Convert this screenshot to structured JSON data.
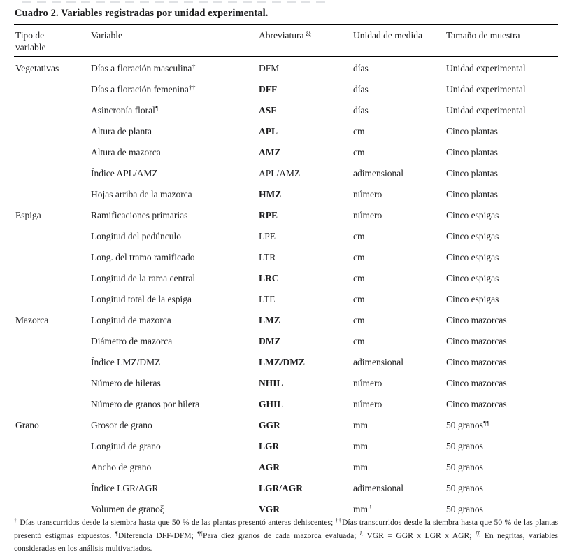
{
  "title": "Cuadro 2. Variables registradas por unidad experimental.",
  "colors": {
    "text": "#1d1d1f",
    "rule": "#000000",
    "background": "#ffffff"
  },
  "table": {
    "headers": [
      {
        "label": "Tipo de variable",
        "sup": ""
      },
      {
        "label": "Variable",
        "sup": ""
      },
      {
        "label": "Abreviatura",
        "sup": "ξξ"
      },
      {
        "label": "Unidad de medida",
        "sup": ""
      },
      {
        "label": "Tamaño de muestra",
        "sup": ""
      }
    ],
    "rows": [
      {
        "group": "Vegetativas",
        "variable": "Días a floración masculina",
        "variable_sup": "†",
        "abbr": "DFM",
        "abbr_bold": false,
        "unit": "días",
        "unit_sup": "",
        "sample": "Unidad experimental",
        "sample_sup": ""
      },
      {
        "group": "",
        "variable": "Días a floración femenina",
        "variable_sup": "††",
        "abbr": "DFF",
        "abbr_bold": true,
        "unit": "días",
        "unit_sup": "",
        "sample": "Unidad experimental",
        "sample_sup": ""
      },
      {
        "group": "",
        "variable": "Asincronía floral",
        "variable_sup": "¶",
        "abbr": "ASF",
        "abbr_bold": true,
        "unit": "días",
        "unit_sup": "",
        "sample": "Unidad experimental",
        "sample_sup": ""
      },
      {
        "group": "",
        "variable": "Altura de planta",
        "variable_sup": "",
        "abbr": "APL",
        "abbr_bold": true,
        "unit": "cm",
        "unit_sup": "",
        "sample": "Cinco plantas",
        "sample_sup": ""
      },
      {
        "group": "",
        "variable": "Altura de mazorca",
        "variable_sup": "",
        "abbr": "AMZ",
        "abbr_bold": true,
        "unit": "cm",
        "unit_sup": "",
        "sample": "Cinco plantas",
        "sample_sup": ""
      },
      {
        "group": "",
        "variable": "Índice APL/AMZ",
        "variable_sup": "",
        "abbr": "APL/AMZ",
        "abbr_bold": false,
        "unit": "adimensional",
        "unit_sup": "",
        "sample": "Cinco plantas",
        "sample_sup": ""
      },
      {
        "group": "",
        "variable": "Hojas arriba de la mazorca",
        "variable_sup": "",
        "abbr": "HMZ",
        "abbr_bold": true,
        "unit": "número",
        "unit_sup": "",
        "sample": "Cinco plantas",
        "sample_sup": ""
      },
      {
        "group": "Espiga",
        "variable": "Ramificaciones primarias",
        "variable_sup": "",
        "abbr": "RPE",
        "abbr_bold": true,
        "unit": "número",
        "unit_sup": "",
        "sample": "Cinco espigas",
        "sample_sup": ""
      },
      {
        "group": "",
        "variable": "Longitud del pedúnculo",
        "variable_sup": "",
        "abbr": "LPE",
        "abbr_bold": false,
        "unit": "cm",
        "unit_sup": "",
        "sample": "Cinco espigas",
        "sample_sup": ""
      },
      {
        "group": "",
        "variable": "Long. del tramo ramificado",
        "variable_sup": "",
        "abbr": "LTR",
        "abbr_bold": false,
        "unit": "cm",
        "unit_sup": "",
        "sample": "Cinco espigas",
        "sample_sup": ""
      },
      {
        "group": "",
        "variable": "Longitud de la rama central",
        "variable_sup": "",
        "abbr": "LRC",
        "abbr_bold": true,
        "unit": "cm",
        "unit_sup": "",
        "sample": "Cinco espigas",
        "sample_sup": ""
      },
      {
        "group": "",
        "variable": "Longitud total de la espiga",
        "variable_sup": "",
        "abbr": "LTE",
        "abbr_bold": false,
        "unit": "cm",
        "unit_sup": "",
        "sample": "Cinco espigas",
        "sample_sup": ""
      },
      {
        "group": "Mazorca",
        "variable": "Longitud de mazorca",
        "variable_sup": "",
        "abbr": "LMZ",
        "abbr_bold": true,
        "unit": "cm",
        "unit_sup": "",
        "sample": "Cinco mazorcas",
        "sample_sup": ""
      },
      {
        "group": "",
        "variable": "Diámetro de mazorca",
        "variable_sup": "",
        "abbr": "DMZ",
        "abbr_bold": true,
        "unit": "cm",
        "unit_sup": "",
        "sample": "Cinco mazorcas",
        "sample_sup": ""
      },
      {
        "group": "",
        "variable": "Índice LMZ/DMZ",
        "variable_sup": "",
        "abbr": "LMZ/DMZ",
        "abbr_bold": true,
        "unit": "adimensional",
        "unit_sup": "",
        "sample": "Cinco mazorcas",
        "sample_sup": ""
      },
      {
        "group": "",
        "variable": "Número de hileras",
        "variable_sup": "",
        "abbr": "NHIL",
        "abbr_bold": true,
        "unit": "número",
        "unit_sup": "",
        "sample": "Cinco mazorcas",
        "sample_sup": ""
      },
      {
        "group": "",
        "variable": "Número de granos por hilera",
        "variable_sup": "",
        "abbr": "GHIL",
        "abbr_bold": true,
        "unit": "número",
        "unit_sup": "",
        "sample": "Cinco mazorcas",
        "sample_sup": ""
      },
      {
        "group": "Grano",
        "variable": "Grosor de grano",
        "variable_sup": "",
        "abbr": "GGR",
        "abbr_bold": true,
        "unit": "mm",
        "unit_sup": "",
        "sample": "50 granos",
        "sample_sup": "¶¶"
      },
      {
        "group": "",
        "variable": "Longitud de grano",
        "variable_sup": "",
        "abbr": "LGR",
        "abbr_bold": true,
        "unit": "mm",
        "unit_sup": "",
        "sample": "50 granos",
        "sample_sup": ""
      },
      {
        "group": "",
        "variable": "Ancho de grano",
        "variable_sup": "",
        "abbr": "AGR",
        "abbr_bold": true,
        "unit": "mm",
        "unit_sup": "",
        "sample": "50 granos",
        "sample_sup": ""
      },
      {
        "group": "",
        "variable": "Índice LGR/AGR",
        "variable_sup": "",
        "abbr": "LGR/AGR",
        "abbr_bold": true,
        "unit": "adimensional",
        "unit_sup": "",
        "sample": "50 granos",
        "sample_sup": ""
      },
      {
        "group": "",
        "variable": "Volumen de granoξ",
        "variable_sup": "",
        "abbr": "VGR",
        "abbr_bold": true,
        "unit": "mm",
        "unit_sup": "3",
        "sample": "50 granos",
        "sample_sup": ""
      }
    ]
  },
  "footnote": {
    "segments": [
      {
        "sup": "†",
        "text": " Días transcurridos desde la siembra hasta que 50 % de las plantas presentó anteras dehiscentes; "
      },
      {
        "sup": "††",
        "text": "Días transcurridos desde la siembra hasta que 50 % de las plantas presentó estigmas expuestos. "
      },
      {
        "sup": "¶",
        "text": "Diferencia DFF-DFM; "
      },
      {
        "sup": "¶¶",
        "text": "Para diez granos de cada mazorca evaluada; "
      },
      {
        "sup": "ξ",
        "text": " VGR = GGR x LGR x AGR; "
      },
      {
        "sup": "ξξ",
        "text": " En negritas, variables consideradas en los análisis multivariados."
      }
    ]
  }
}
